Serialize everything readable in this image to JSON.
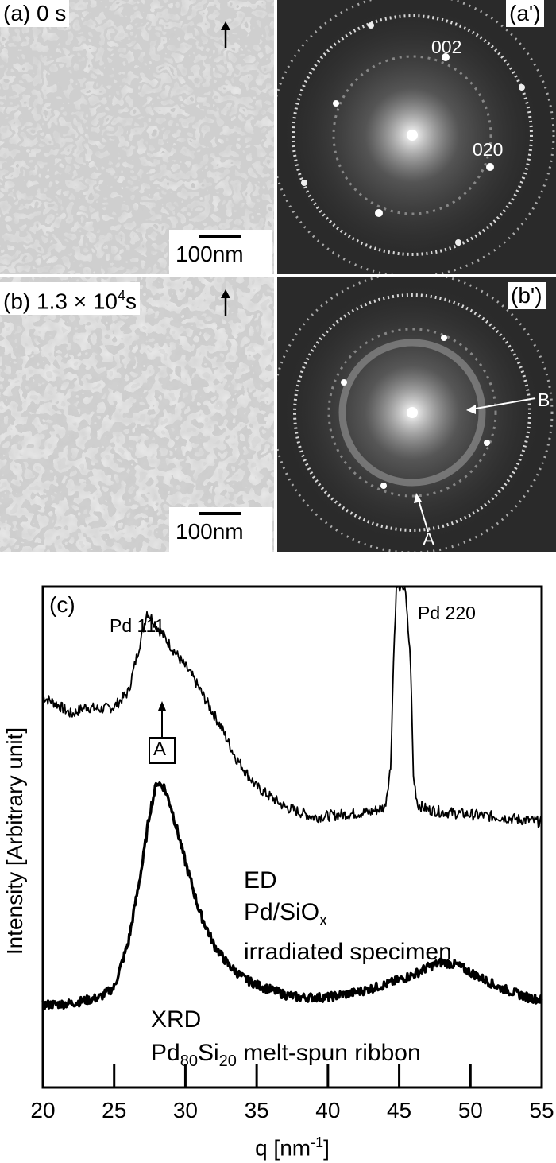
{
  "panels": {
    "a": {
      "tag": "(a)",
      "time": "0 s",
      "scale_label": "100nm"
    },
    "a_prime": {
      "tag": "(a')",
      "spot_002": "002",
      "spot_020": "020"
    },
    "b": {
      "tag": "(b)",
      "time_mantissa": "1.3 × 10",
      "time_exp": "4",
      "time_unit": "s",
      "scale_label": "100nm"
    },
    "b_prime": {
      "tag": "(b')",
      "label_A": "A",
      "label_B": "B"
    }
  },
  "chart_data": {
    "type": "line",
    "panel_tag": "(c)",
    "xlabel": "q [nm",
    "xlabel_exp": "-1",
    "xlabel_close": "]",
    "ylabel": "Intensity [Arbitrary unit]",
    "xlim": [
      20,
      55
    ],
    "xticks": [
      "20",
      "25",
      "30",
      "35",
      "40",
      "45",
      "50",
      "55"
    ],
    "annotations": {
      "pd111": "Pd 111",
      "pd220": "Pd 220",
      "marker_A": "A"
    },
    "series": [
      {
        "name": "ED",
        "legend_lines": [
          "ED",
          "Pd/SiO",
          "x",
          "irradiated specimen"
        ],
        "x": [
          20,
          21,
          22,
          23,
          24,
          25,
          26,
          26.5,
          27,
          27.3,
          27.8,
          28.5,
          29.5,
          30.5,
          31.5,
          32.5,
          33.5,
          35,
          37,
          39,
          41,
          43,
          44,
          44.4,
          44.6,
          44.8,
          45.4,
          45.8,
          46,
          46.3,
          47,
          48,
          50,
          52,
          55
        ],
        "y": [
          0.78,
          0.765,
          0.745,
          0.76,
          0.755,
          0.76,
          0.79,
          0.85,
          0.91,
          0.95,
          0.93,
          0.9,
          0.86,
          0.82,
          0.77,
          0.72,
          0.66,
          0.6,
          0.56,
          0.54,
          0.545,
          0.55,
          0.56,
          0.64,
          0.85,
          1.0,
          1.0,
          0.85,
          0.62,
          0.565,
          0.555,
          0.55,
          0.545,
          0.54,
          0.53
        ]
      },
      {
        "name": "XRD",
        "legend_lines": [
          "XRD",
          "Pd",
          "80",
          "Si",
          "20",
          " melt-spun ribbon"
        ],
        "x": [
          20,
          22,
          24,
          25,
          26,
          27,
          27.5,
          28,
          28.5,
          29,
          30,
          31,
          32,
          33,
          34,
          35,
          36,
          37,
          38,
          40,
          42,
          44,
          46,
          47,
          48,
          49,
          50,
          52,
          54,
          55
        ],
        "y": [
          0.165,
          0.168,
          0.18,
          0.2,
          0.29,
          0.45,
          0.55,
          0.61,
          0.6,
          0.56,
          0.45,
          0.35,
          0.285,
          0.245,
          0.22,
          0.205,
          0.195,
          0.185,
          0.18,
          0.18,
          0.19,
          0.205,
          0.225,
          0.24,
          0.25,
          0.245,
          0.23,
          0.2,
          0.18,
          0.175
        ]
      }
    ]
  }
}
